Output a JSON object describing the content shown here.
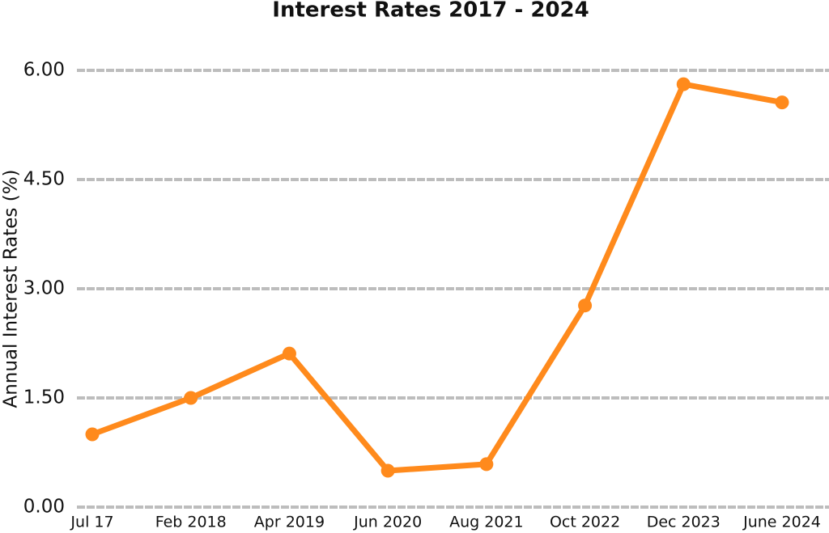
{
  "chart_data": {
    "type": "line",
    "title": "Interest Rates 2017 - 2024",
    "ylabel": "Annual Interest Rates (%)",
    "categories": [
      "Jul 17",
      "Feb 2018",
      "Apr 2019",
      "Jun 2020",
      "Aug 2021",
      "Oct 2022",
      "Dec 2023",
      "June 2024"
    ],
    "series": [
      {
        "name": "Annual Interest Rate",
        "color": "#ff8a1c",
        "values": [
          1.0,
          1.5,
          2.11,
          0.5,
          0.59,
          2.77,
          5.81,
          5.56
        ]
      }
    ],
    "ylim": [
      0,
      6
    ],
    "yticks": [
      {
        "value": 0,
        "label": "0.00"
      },
      {
        "value": 1.5,
        "label": "1.50"
      },
      {
        "value": 3,
        "label": "3.00"
      },
      {
        "value": 4.5,
        "label": "4.50"
      },
      {
        "value": 6,
        "label": "6.00"
      }
    ],
    "grid": true
  }
}
